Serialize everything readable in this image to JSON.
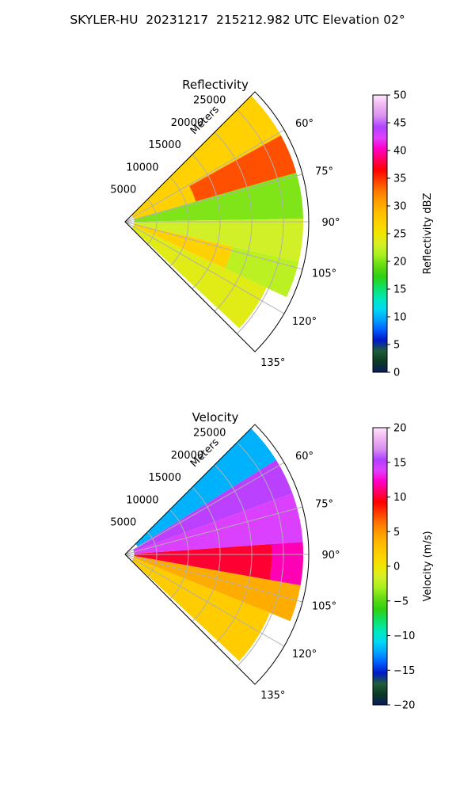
{
  "figure": {
    "suptitle": "SKYLER-HU  20231217  215212.982 UTC Elevation 02°"
  },
  "chart_data": [
    {
      "type": "heatmap",
      "projection": "polar-sector",
      "title": "Reflectivity",
      "radial_label": "Meters",
      "radial_ticks": [
        5000,
        10000,
        15000,
        20000,
        25000
      ],
      "radial_tick_labels": [
        "5000",
        "10000",
        "15000",
        "20000",
        "25000"
      ],
      "azimuth_ticks": [
        60,
        75,
        90,
        105,
        120,
        135
      ],
      "azimuth_tick_labels": [
        "60°",
        "75°",
        "90°",
        "105°",
        "120°",
        "135°"
      ],
      "azimuth_range": [
        45,
        135
      ],
      "range_max_m": 29000,
      "grid": true,
      "colorbar": {
        "label": "Reflectivity dBZ",
        "min": 0,
        "max": 50,
        "ticks": [
          0,
          5,
          10,
          15,
          20,
          25,
          30,
          35,
          40,
          45,
          50
        ],
        "tick_labels": [
          "0",
          "5",
          "10",
          "15",
          "20",
          "25",
          "30",
          "35",
          "40",
          "45",
          "50"
        ],
        "colors": [
          "#0b1a5e",
          "#0b3a22",
          "#1f5c3a",
          "#0018c8",
          "#0060ff",
          "#00a8ff",
          "#00dcf0",
          "#00e8b4",
          "#10e060",
          "#30d010",
          "#64dc14",
          "#a8f01e",
          "#d4f028",
          "#f0e600",
          "#ffd200",
          "#ffbe00",
          "#ffa000",
          "#ff7800",
          "#ff3c00",
          "#ff0000",
          "#ff0064",
          "#ff00c8",
          "#e040ff",
          "#b040ff",
          "#d890f0",
          "#f0b4f0",
          "#ffe6ff"
        ]
      },
      "regions": [
        {
          "az": [
            45,
            61
          ],
          "r": [
            0.05,
            0.97
          ],
          "value": 27
        },
        {
          "az": [
            61,
            74
          ],
          "r": [
            0.05,
            0.4
          ],
          "value": 27
        },
        {
          "az": [
            61,
            74
          ],
          "r": [
            0.4,
            0.97
          ],
          "value": 34
        },
        {
          "az": [
            74,
            89
          ],
          "r": [
            0.05,
            0.97
          ],
          "value": 20
        },
        {
          "az": [
            89,
            103
          ],
          "r": [
            0.05,
            0.97
          ],
          "value": 23
        },
        {
          "az": [
            103,
            115
          ],
          "r": [
            0.05,
            0.6
          ],
          "value": 27
        },
        {
          "az": [
            103,
            115
          ],
          "r": [
            0.6,
            0.97
          ],
          "value": 22
        },
        {
          "az": [
            115,
            133
          ],
          "r": [
            0.05,
            0.85
          ],
          "value": 24
        }
      ]
    },
    {
      "type": "heatmap",
      "projection": "polar-sector",
      "title": "Velocity",
      "radial_label": "Meters",
      "radial_ticks": [
        5000,
        10000,
        15000,
        20000,
        25000
      ],
      "radial_tick_labels": [
        "5000",
        "10000",
        "15000",
        "20000",
        "25000"
      ],
      "azimuth_ticks": [
        60,
        75,
        90,
        105,
        120,
        135
      ],
      "azimuth_tick_labels": [
        "60°",
        "75°",
        "90°",
        "105°",
        "120°",
        "135°"
      ],
      "azimuth_range": [
        45,
        135
      ],
      "range_max_m": 29000,
      "grid": true,
      "colorbar": {
        "label": "Velocity (m/s)",
        "min": -20,
        "max": 20,
        "ticks": [
          -20,
          -15,
          -10,
          -5,
          0,
          5,
          10,
          15,
          20
        ],
        "tick_labels": [
          "−20",
          "−15",
          "−10",
          "−5",
          "0",
          "5",
          "10",
          "15",
          "20"
        ],
        "colors": [
          "#0b1a5e",
          "#0b3a22",
          "#1f5c3a",
          "#0018c8",
          "#0060ff",
          "#00a8ff",
          "#00dcf0",
          "#00e8b4",
          "#10e060",
          "#30d010",
          "#64dc14",
          "#a8f01e",
          "#d4f028",
          "#f0e600",
          "#ffd200",
          "#ffbe00",
          "#ffa000",
          "#ff7800",
          "#ff3c00",
          "#ff0000",
          "#ff0064",
          "#ff00c8",
          "#e040ff",
          "#b040ff",
          "#d890f0",
          "#f0b4f0",
          "#ffe6ff"
        ]
      },
      "regions": [
        {
          "az": [
            45,
            58
          ],
          "r": [
            0.08,
            0.97
          ],
          "value": -12
        },
        {
          "az": [
            58,
            70
          ],
          "r": [
            0.05,
            0.97
          ],
          "value": 15
        },
        {
          "az": [
            70,
            86
          ],
          "r": [
            0.05,
            0.97
          ],
          "value": 14
        },
        {
          "az": [
            86,
            100
          ],
          "r": [
            0.05,
            0.8
          ],
          "value": 10
        },
        {
          "az": [
            86,
            100
          ],
          "r": [
            0.8,
            0.97
          ],
          "value": 12
        },
        {
          "az": [
            100,
            112
          ],
          "r": [
            0.05,
            0.97
          ],
          "value": 4
        },
        {
          "az": [
            112,
            133
          ],
          "r": [
            0.05,
            0.85
          ],
          "value": 2
        }
      ]
    }
  ]
}
